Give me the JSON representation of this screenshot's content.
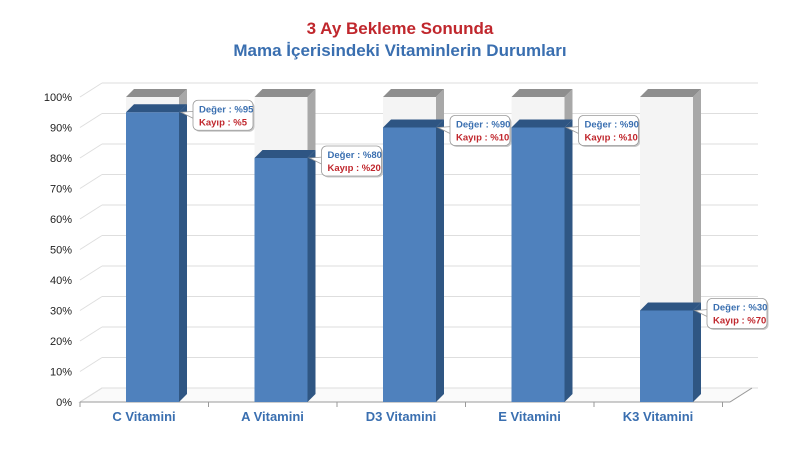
{
  "title_line1": "3 Ay Bekleme Sonunda",
  "title_line2": "Mama İçerisindeki Vitaminlerin Durumları",
  "colors": {
    "title1": "#c0272d",
    "title2": "#3a6fb0",
    "bar_front": "#4f81bd",
    "bar_side": "#2f5683",
    "bar_top": "#2e5583",
    "stack_front": "#f4f4f4",
    "stack_side": "#a8a8a8",
    "stack_top": "#8e8e8e"
  },
  "chart_data": {
    "type": "bar",
    "stacked": true,
    "categories": [
      "C Vitamini",
      "A Vitamini",
      "D3 Vitamini",
      "E Vitamini",
      "K3 Vitamini"
    ],
    "series": [
      {
        "values": [
          95,
          80,
          90,
          90,
          30
        ]
      },
      {
        "values": [
          5,
          20,
          10,
          10,
          70
        ]
      }
    ],
    "yticks": [
      "0%",
      "10%",
      "20%",
      "30%",
      "40%",
      "50%",
      "60%",
      "70%",
      "80%",
      "90%",
      "100%"
    ],
    "ylim": [
      0,
      100
    ],
    "grid": true,
    "data_labels": [
      {
        "value": "Değer : %95",
        "loss": "Kayıp : %5"
      },
      {
        "value": "Değer : %80",
        "loss": "Kayıp : %20"
      },
      {
        "value": "Değer : %90",
        "loss": "Kayıp : %10"
      },
      {
        "value": "Değer : %90",
        "loss": "Kayıp : %10"
      },
      {
        "value": "Değer : %30",
        "loss": "Kayıp : %70"
      }
    ]
  }
}
